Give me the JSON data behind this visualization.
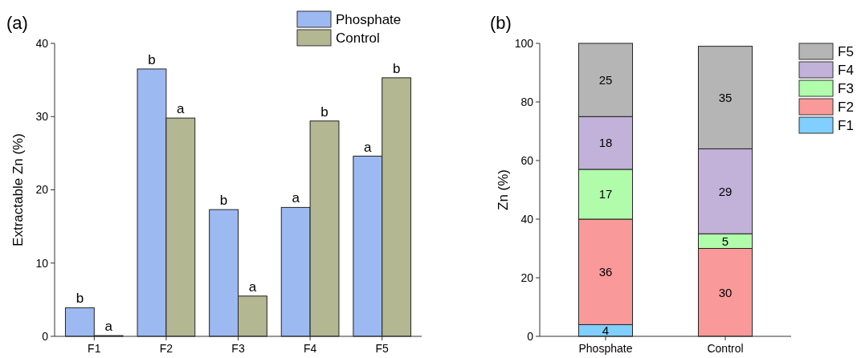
{
  "chart_data": [
    {
      "type": "bar",
      "title": "(a)",
      "ylabel": "Extractable Zn (%)",
      "categories": [
        "F1",
        "F2",
        "F3",
        "F4",
        "F5"
      ],
      "ylim": [
        0,
        40
      ],
      "yticks": [
        0,
        10,
        20,
        30,
        40
      ],
      "legend": "top right",
      "series": [
        {
          "name": "Phosphate",
          "color": "#9db9f2",
          "values": [
            3.9,
            36.5,
            17.3,
            17.6,
            24.6
          ],
          "value_labels": [
            "b",
            "b",
            "b",
            "a",
            "a"
          ]
        },
        {
          "name": "Control",
          "color": "#b3b792",
          "values": [
            0.1,
            29.8,
            5.5,
            29.4,
            35.3
          ],
          "value_labels": [
            "a",
            "a",
            "a",
            "b",
            "b"
          ]
        }
      ]
    },
    {
      "type": "bar",
      "title": "(b)",
      "ylabel": "Zn (%)",
      "categories": [
        "Phosphate",
        "Control"
      ],
      "ylim": [
        0,
        100
      ],
      "yticks": [
        0,
        20,
        40,
        60,
        80,
        100
      ],
      "stacked": true,
      "legend": "top right",
      "series": [
        {
          "name": "F1",
          "color": "#80cfff",
          "values": [
            4,
            0
          ],
          "value_labels": [
            "4",
            null
          ]
        },
        {
          "name": "F2",
          "color": "#fa9999",
          "values": [
            36,
            30
          ],
          "value_labels": [
            "36",
            "30"
          ]
        },
        {
          "name": "F3",
          "color": "#b0fcaa",
          "values": [
            17,
            5
          ],
          "value_labels": [
            "17",
            "5"
          ]
        },
        {
          "name": "F4",
          "color": "#c2b1d8",
          "values": [
            18,
            29
          ],
          "value_labels": [
            "18",
            "29"
          ]
        },
        {
          "name": "F5",
          "color": "#b5b5b5",
          "values": [
            25,
            35
          ],
          "value_labels": [
            "25",
            "35"
          ]
        }
      ]
    }
  ]
}
